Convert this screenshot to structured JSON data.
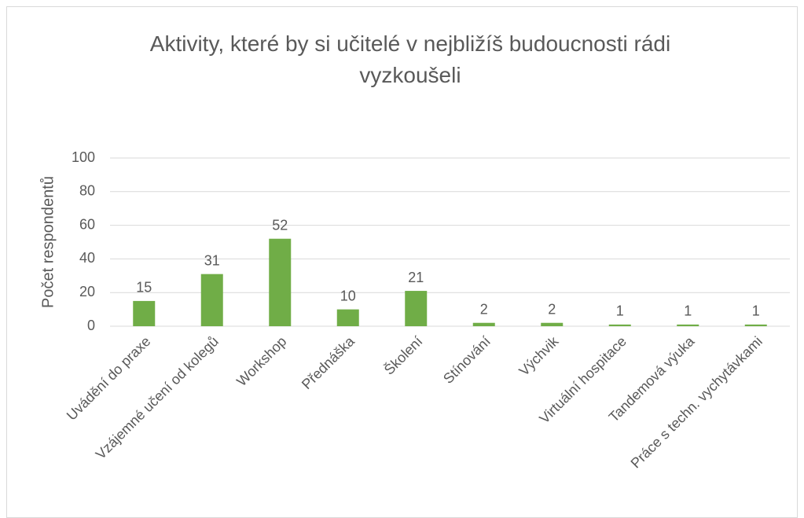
{
  "chart_data": {
    "type": "bar",
    "title": "Aktivity, které by si učitelé v nejbližíš budoucnosti rádi vyzkoušeli",
    "y_label": "Počet respondentů",
    "categories": [
      "Uvádění do praxe",
      "Vzájemné učení od kolegů",
      "Workshop",
      "Přednáška",
      "Školení",
      "Stínování",
      "Výchvik",
      "Virtuální hospitace",
      "Tandemová výuka",
      "Práce s techn. vychytávkami"
    ],
    "values": [
      15,
      31,
      52,
      10,
      21,
      2,
      2,
      1,
      1,
      1
    ],
    "color": "#70ad47",
    "ylim": [
      0,
      100
    ],
    "yticks": [
      0,
      20,
      40,
      60,
      80,
      100
    ],
    "grid": true
  }
}
